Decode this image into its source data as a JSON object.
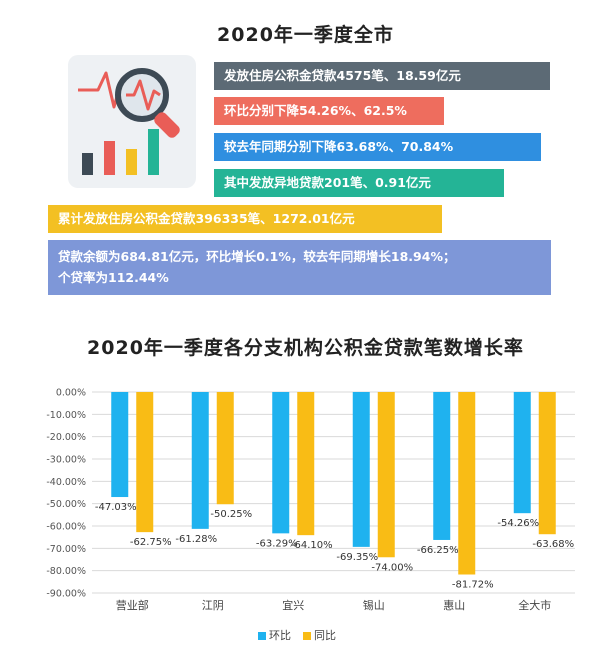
{
  "top_title": "2020年一季度全市",
  "banners": {
    "b1": "发放住房公积金贷款4575笔、18.59亿元",
    "b2": "环比分别下降54.26%、62.5%",
    "b3": "较去年同期分别下降63.68%、70.84%",
    "b4": "其中发放异地贷款201笔、0.91亿元",
    "b5": "累计发放住房公积金贷款396335笔、1272.01亿元",
    "b6_line1": "贷款余额为684.81亿元，环比增长0.1%，较去年同期增长18.94%；",
    "b6_line2": "个贷率为112.44%"
  },
  "icons": {
    "illustration": "chart-magnifier-icon"
  },
  "colors": {
    "banner1": "#5c6a75",
    "banner2": "#ee6d5e",
    "banner3": "#2f8fe0",
    "banner4": "#24b496",
    "banner5": "#f3c023",
    "banner6": "#7e97d8",
    "series_huanbi": "#1fb2ef",
    "series_tongbi": "#f9bc15"
  },
  "chart_title": "2020年一季度各分支机构公积金贷款笔数增长率",
  "chart_data": {
    "type": "bar",
    "title": "2020年一季度各分支机构公积金贷款笔数增长率",
    "categories": [
      "营业部",
      "江阴",
      "宜兴",
      "锡山",
      "惠山",
      "全大市"
    ],
    "series": [
      {
        "name": "环比",
        "values": [
          -47.03,
          -61.28,
          -63.29,
          -69.35,
          -66.25,
          -54.26
        ],
        "labels": [
          "-47.03%",
          "-61.28%",
          "-63.29%",
          "-69.35%",
          "-66.25%",
          "-54.26%"
        ]
      },
      {
        "name": "同比",
        "values": [
          -62.75,
          -50.25,
          -64.1,
          -74.0,
          -81.72,
          -63.68
        ],
        "labels": [
          "-62.75%",
          "-50.25%",
          "-64.10%",
          "-74.00%",
          "-81.72%",
          "-63.68%"
        ]
      }
    ],
    "ylim": [
      -90,
      0
    ],
    "yticks": [
      "0.00%",
      "-10.00%",
      "-20.00%",
      "-30.00%",
      "-40.00%",
      "-50.00%",
      "-60.00%",
      "-70.00%",
      "-80.00%",
      "-90.00%"
    ],
    "grid": true,
    "legend": "bottom-center"
  }
}
